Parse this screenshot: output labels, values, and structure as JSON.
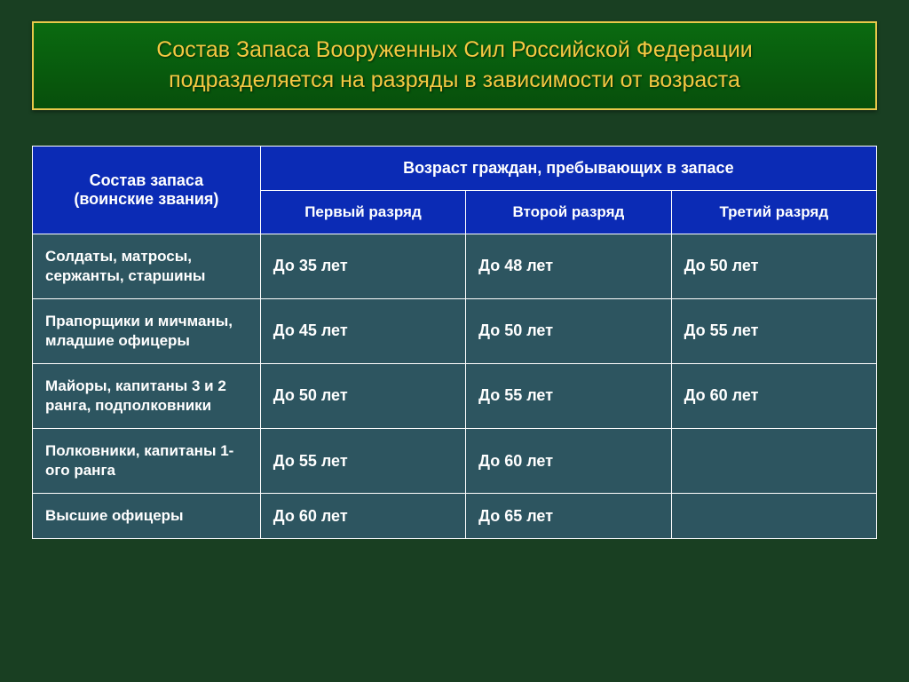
{
  "title": {
    "line1": "Состав Запаса Вооруженных Сил Российской Федерации",
    "line2": "подразделяется на разряды в зависимости от возраста"
  },
  "table": {
    "header_rank_line1": "Состав запаса",
    "header_rank_line2": "(воинские звания)",
    "header_age_group": "Возраст граждан, пребывающих в запасе",
    "col1": "Первый разряд",
    "col2": "Второй разряд",
    "col3": "Третий разряд",
    "rows": [
      {
        "rank": "Солдаты, матросы, сержанты, старшины",
        "v1": "До 35 лет",
        "v2": "До 48 лет",
        "v3": "До 50 лет"
      },
      {
        "rank": "Прапорщики и мичманы, младшие офицеры",
        "v1": "До 45 лет",
        "v2": "До 50 лет",
        "v3": "До 55 лет"
      },
      {
        "rank": "Майоры, капитаны 3 и 2 ранга, подполковники",
        "v1": "До 50 лет",
        "v2": "До 55 лет",
        "v3": "До 60 лет"
      },
      {
        "rank": "Полковники, капитаны 1-ого ранга",
        "v1": "До 55 лет",
        "v2": "До 60 лет",
        "v3": ""
      },
      {
        "rank": "Высшие офицеры",
        "v1": "До 60 лет",
        "v2": "До 65 лет",
        "v3": ""
      }
    ]
  },
  "colors": {
    "slide_bg": "#193f22",
    "title_border": "#e8c94a",
    "title_text": "#f4c842",
    "header_bg": "#0b2bb5",
    "cell_bg": "#2d5560",
    "border": "#ffffff",
    "text": "#ffffff"
  },
  "fonts": {
    "title_size_pt": 19,
    "header_size_pt": 14,
    "body_size_pt": 13
  }
}
